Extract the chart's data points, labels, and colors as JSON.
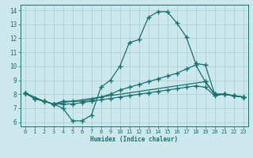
{
  "xlabel": "Humidex (Indice chaleur)",
  "bg_color": "#cce8ec",
  "grid_color": "#aacccc",
  "line_color": "#1a7070",
  "xlim": [
    -0.5,
    23.5
  ],
  "ylim": [
    5.7,
    14.4
  ],
  "xticks": [
    0,
    1,
    2,
    3,
    4,
    5,
    6,
    7,
    8,
    9,
    10,
    11,
    12,
    13,
    14,
    15,
    16,
    17,
    18,
    19,
    20,
    21,
    22,
    23
  ],
  "yticks": [
    6,
    7,
    8,
    9,
    10,
    11,
    12,
    13,
    14
  ],
  "curve1_x": [
    0,
    1,
    2,
    3,
    4,
    5,
    6,
    7,
    8,
    9,
    10,
    11,
    12,
    13,
    14,
    15,
    16,
    17,
    18,
    19,
    20,
    21,
    22,
    23
  ],
  "curve1_y": [
    8.1,
    7.7,
    7.5,
    7.3,
    7.0,
    6.1,
    6.1,
    6.5,
    8.5,
    9.0,
    10.0,
    11.7,
    11.9,
    13.5,
    13.9,
    13.9,
    13.1,
    12.1,
    10.2,
    10.1,
    8.0,
    8.0,
    7.9,
    7.8
  ],
  "curve2_x": [
    0,
    2,
    3,
    19,
    20,
    21,
    22,
    23
  ],
  "curve2_y": [
    8.1,
    7.5,
    7.3,
    8.9,
    8.0,
    8.0,
    7.9,
    7.8
  ],
  "curve3_x": [
    0,
    1,
    2,
    3,
    4,
    5,
    6,
    7,
    8,
    9,
    10,
    11,
    12,
    13,
    14,
    15,
    16,
    17,
    18,
    19,
    20,
    21,
    22,
    23
  ],
  "curve3_y": [
    8.1,
    7.7,
    7.5,
    7.3,
    7.5,
    7.5,
    7.5,
    7.6,
    7.8,
    8.0,
    8.3,
    8.5,
    8.7,
    8.9,
    9.1,
    9.3,
    9.5,
    9.8,
    10.1,
    8.9,
    8.0,
    8.0,
    7.9,
    7.8
  ],
  "curve4_x": [
    0,
    1,
    2,
    3,
    4,
    5,
    6,
    7,
    8,
    9,
    10,
    11,
    12,
    13,
    14,
    15,
    16,
    17,
    18,
    19,
    20,
    21,
    22,
    23
  ],
  "curve4_y": [
    8.1,
    7.7,
    7.5,
    7.3,
    7.3,
    7.3,
    7.4,
    7.5,
    7.6,
    7.7,
    7.8,
    7.9,
    8.0,
    8.1,
    8.2,
    8.3,
    8.4,
    8.5,
    8.6,
    8.5,
    7.9,
    8.0,
    7.9,
    7.8
  ]
}
